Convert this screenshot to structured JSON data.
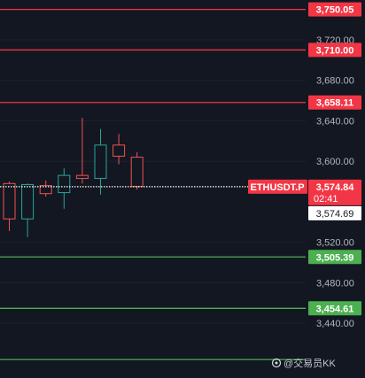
{
  "chart_data": {
    "type": "candlestick",
    "symbol": "ETHUSDT.P",
    "countdown": "02:41",
    "last_price": 3574.84,
    "last_price_label": "3,574.84",
    "crosshair_price_label": "3,574.69",
    "y_ticks": [
      {
        "value": 3720,
        "label": "3,720.00"
      },
      {
        "value": 3680,
        "label": "3,680.00"
      },
      {
        "value": 3640,
        "label": "3,640.00"
      },
      {
        "value": 3600,
        "label": "3,600.00"
      },
      {
        "value": 3520,
        "label": "3,520.00"
      },
      {
        "value": 3480,
        "label": "3,480.00"
      },
      {
        "value": 3440,
        "label": "3,440.00"
      }
    ],
    "resistance_levels": [
      {
        "value": 3750.05,
        "label": "3,750.05"
      },
      {
        "value": 3710.0,
        "label": "3,710.00"
      },
      {
        "value": 3658.11,
        "label": "3,658.11"
      }
    ],
    "support_levels": [
      {
        "value": 3505.39,
        "label": "3,505.39"
      },
      {
        "value": 3454.61,
        "label": "3,454.61"
      },
      {
        "value": 3404.0,
        "label": ""
      }
    ],
    "candles": [
      {
        "open": 3578,
        "high": 3580,
        "low": 3531,
        "close": 3543
      },
      {
        "open": 3543,
        "high": 3578,
        "low": 3525,
        "close": 3577
      },
      {
        "open": 3576,
        "high": 3581,
        "low": 3565,
        "close": 3568
      },
      {
        "open": 3569,
        "high": 3593,
        "low": 3553,
        "close": 3586
      },
      {
        "open": 3586,
        "high": 3643,
        "low": 3578,
        "close": 3583
      },
      {
        "open": 3583,
        "high": 3632,
        "low": 3567,
        "close": 3616
      },
      {
        "open": 3616,
        "high": 3627,
        "low": 3597,
        "close": 3605
      },
      {
        "open": 3604,
        "high": 3609,
        "low": 3572,
        "close": 3575
      }
    ]
  },
  "colors": {
    "background": "#131722",
    "axis_text": "#b2b5be",
    "grid": "#1e2230",
    "bull": "#26a69a",
    "bear": "#ef5350",
    "resistance_line": "#f23645",
    "support_line": "#4caf50",
    "label_text": "#ffffff",
    "crosshair_label_bg": "#ffffff",
    "crosshair_label_text": "#131722"
  },
  "watermark": "@交易员KK",
  "watermark_icon": "weibo-icon"
}
